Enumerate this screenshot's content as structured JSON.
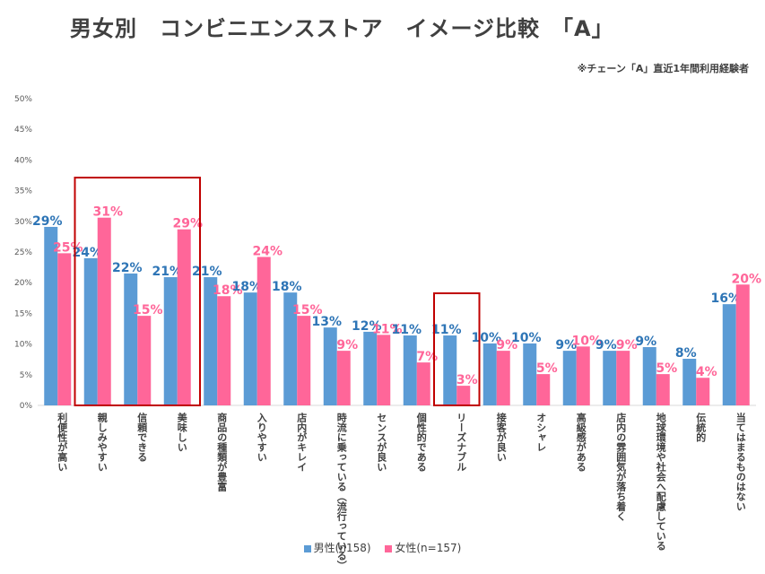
{
  "chart_data": {
    "type": "bar",
    "title": "男女別　コンビニエンスストア　イメージ比較　「A」",
    "subtitle": "※チェーン「A」直近1年間利用経験者",
    "ylim": [
      0,
      50
    ],
    "yticks": [
      "0%",
      "5%",
      "10%",
      "15%",
      "20%",
      "25%",
      "30%",
      "35%",
      "40%",
      "45%",
      "50%"
    ],
    "categories": [
      "利便性が高い",
      "親しみやすい",
      "信頼できる",
      "美味しい",
      "商品の種類が豊富",
      "入りやすい",
      "店内がキレイ",
      "時流に乗っている（流行っている）",
      "センスが良い",
      "個性的である",
      "リーズナブル",
      "接客が良い",
      "オシャレ",
      "高級感がある",
      "店内の雰囲気が落ち着く",
      "地球環境や社会へ配慮している",
      "伝統的",
      "当てはまるものはない"
    ],
    "series": [
      {
        "name": "男性(n158)",
        "color": "#5b9bd5",
        "label_color": "#2e75b6",
        "values": [
          29.1,
          24.0,
          21.5,
          20.9,
          20.9,
          18.4,
          18.4,
          12.7,
          12.0,
          11.4,
          11.4,
          10.1,
          10.1,
          8.9,
          8.9,
          9.5,
          7.6,
          16.5
        ],
        "labels": [
          "29%",
          "24%",
          "22%",
          "21%",
          "21%",
          "18%",
          "18%",
          "13%",
          "12%",
          "11%",
          "11%",
          "10%",
          "10%",
          "9%",
          "9%",
          "9%",
          "8%",
          "16%"
        ]
      },
      {
        "name": "女性(n=157)",
        "color": "#ff6699",
        "label_color": "#ff6699",
        "values": [
          24.8,
          30.6,
          14.6,
          28.7,
          17.8,
          24.2,
          14.6,
          8.9,
          11.5,
          7.0,
          3.2,
          8.9,
          5.1,
          9.6,
          8.9,
          5.1,
          4.5,
          19.7
        ],
        "labels": [
          "25%",
          "31%",
          "15%",
          "29%",
          "18%",
          "24%",
          "15%",
          "9%",
          "11%",
          "7%",
          "3%",
          "9%",
          "5%",
          "10%",
          "9%",
          "5%",
          "4%",
          "20%"
        ]
      }
    ],
    "highlights": [
      [
        1,
        3
      ],
      [
        10,
        10
      ]
    ],
    "highlight_color": "#c00000"
  }
}
